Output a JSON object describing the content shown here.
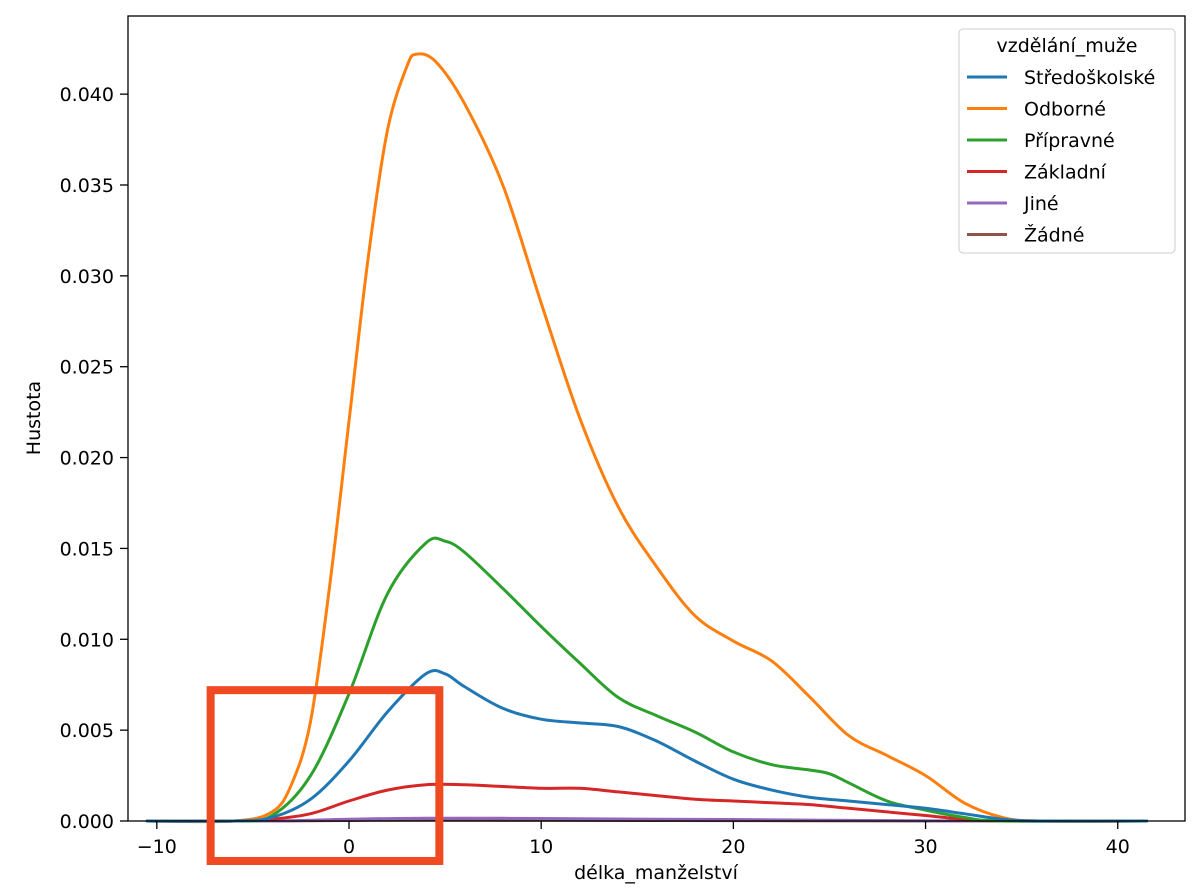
{
  "chart_data": {
    "type": "line",
    "title": "",
    "xlabel": "délka_manželství",
    "ylabel": "Hustota",
    "xlim": [
      -11.5,
      43.5
    ],
    "ylim": [
      0,
      0.0443
    ],
    "xticks": [
      -10,
      0,
      10,
      20,
      30,
      40
    ],
    "xtick_labels": [
      "−10",
      "0",
      "10",
      "20",
      "30",
      "40"
    ],
    "yticks": [
      0,
      0.005,
      0.01,
      0.015,
      0.02,
      0.025,
      0.03,
      0.035,
      0.04
    ],
    "ytick_labels": [
      "0.000",
      "0.005",
      "0.010",
      "0.015",
      "0.020",
      "0.025",
      "0.030",
      "0.035",
      "0.040"
    ],
    "grid": false,
    "legend": {
      "title": "vzdělání_muže",
      "placement": "top-right"
    },
    "series": [
      {
        "name": "Středoškolské",
        "color": "#1f77b4",
        "points": [
          [
            -10.5,
            0
          ],
          [
            -6,
            0
          ],
          [
            -4,
            0.0002
          ],
          [
            -2,
            0.0012
          ],
          [
            0,
            0.0033
          ],
          [
            2,
            0.006
          ],
          [
            4,
            0.0081
          ],
          [
            5,
            0.0081
          ],
          [
            6,
            0.0074
          ],
          [
            8,
            0.0062
          ],
          [
            10,
            0.0056
          ],
          [
            12,
            0.0054
          ],
          [
            14,
            0.0052
          ],
          [
            16,
            0.0044
          ],
          [
            18,
            0.0033
          ],
          [
            20,
            0.0023
          ],
          [
            22,
            0.0017
          ],
          [
            24,
            0.0013
          ],
          [
            26,
            0.0011
          ],
          [
            28,
            0.0009
          ],
          [
            30,
            0.0007
          ],
          [
            32,
            0.0004
          ],
          [
            34,
            0.0001
          ],
          [
            36,
            0
          ],
          [
            41.5,
            0
          ]
        ]
      },
      {
        "name": "Odborné",
        "color": "#ff7f0e",
        "points": [
          [
            -10.5,
            0
          ],
          [
            -6,
            0
          ],
          [
            -4,
            0.0005
          ],
          [
            -3,
            0.002
          ],
          [
            -2,
            0.0055
          ],
          [
            -1,
            0.013
          ],
          [
            0,
            0.022
          ],
          [
            1,
            0.031
          ],
          [
            2,
            0.038
          ],
          [
            3,
            0.0415
          ],
          [
            3.5,
            0.0422
          ],
          [
            4.5,
            0.0418
          ],
          [
            6,
            0.0395
          ],
          [
            8,
            0.035
          ],
          [
            10,
            0.0285
          ],
          [
            12,
            0.0222
          ],
          [
            14,
            0.0173
          ],
          [
            16,
            0.014
          ],
          [
            18,
            0.0113
          ],
          [
            20,
            0.0099
          ],
          [
            22,
            0.0088
          ],
          [
            24,
            0.0068
          ],
          [
            26,
            0.0047
          ],
          [
            28,
            0.0036
          ],
          [
            30,
            0.0025
          ],
          [
            32,
            0.001
          ],
          [
            34,
            0.0002
          ],
          [
            36,
            0
          ],
          [
            41.5,
            0
          ]
        ]
      },
      {
        "name": "Přípravné",
        "color": "#2ca02c",
        "points": [
          [
            -10.5,
            0
          ],
          [
            -6,
            0
          ],
          [
            -4,
            0.0003
          ],
          [
            -2,
            0.0025
          ],
          [
            0,
            0.007
          ],
          [
            2,
            0.0125
          ],
          [
            4,
            0.0153
          ],
          [
            5,
            0.0154
          ],
          [
            6,
            0.0148
          ],
          [
            8,
            0.0128
          ],
          [
            10,
            0.0107
          ],
          [
            12,
            0.0087
          ],
          [
            14,
            0.0068
          ],
          [
            16,
            0.0058
          ],
          [
            18,
            0.0049
          ],
          [
            20,
            0.0038
          ],
          [
            22,
            0.0031
          ],
          [
            24,
            0.0028
          ],
          [
            25,
            0.0026
          ],
          [
            26,
            0.0021
          ],
          [
            28,
            0.0011
          ],
          [
            30,
            0.0006
          ],
          [
            32,
            0.0002
          ],
          [
            34,
            0
          ],
          [
            41.5,
            0
          ]
        ]
      },
      {
        "name": "Základní",
        "color": "#d62728",
        "points": [
          [
            -10.5,
            0
          ],
          [
            -6,
            0
          ],
          [
            -4,
            0.0001
          ],
          [
            -2,
            0.0004
          ],
          [
            0,
            0.0011
          ],
          [
            2,
            0.0017
          ],
          [
            4,
            0.002
          ],
          [
            6,
            0.002
          ],
          [
            8,
            0.0019
          ],
          [
            10,
            0.0018
          ],
          [
            12,
            0.0018
          ],
          [
            14,
            0.0016
          ],
          [
            16,
            0.0014
          ],
          [
            18,
            0.0012
          ],
          [
            20,
            0.0011
          ],
          [
            22,
            0.001
          ],
          [
            24,
            0.0009
          ],
          [
            26,
            0.0007
          ],
          [
            28,
            0.0005
          ],
          [
            30,
            0.0003
          ],
          [
            32,
            0.0001
          ],
          [
            34,
            0
          ],
          [
            41.5,
            0
          ]
        ]
      },
      {
        "name": "Jiné",
        "color": "#9467bd",
        "points": [
          [
            -10.5,
            0
          ],
          [
            -4,
            0
          ],
          [
            0,
            0.0001
          ],
          [
            4,
            0.00015
          ],
          [
            8,
            0.00015
          ],
          [
            12,
            0.00012
          ],
          [
            16,
            0.0001
          ],
          [
            20,
            8e-05
          ],
          [
            24,
            5e-05
          ],
          [
            28,
            2e-05
          ],
          [
            32,
            0
          ],
          [
            41.5,
            0
          ]
        ]
      },
      {
        "name": "Žádné",
        "color": "#8c564b",
        "points": [
          [
            -10.5,
            0
          ],
          [
            -4,
            0
          ],
          [
            0,
            3e-05
          ],
          [
            4,
            5e-05
          ],
          [
            10,
            4e-05
          ],
          [
            20,
            2e-05
          ],
          [
            30,
            0
          ],
          [
            41.5,
            0
          ]
        ]
      }
    ],
    "annotation": {
      "type": "rectangle",
      "color": "#f04a23",
      "x_range": [
        -7.2,
        4.7
      ],
      "y_range": [
        -0.0022,
        0.0072
      ]
    }
  }
}
